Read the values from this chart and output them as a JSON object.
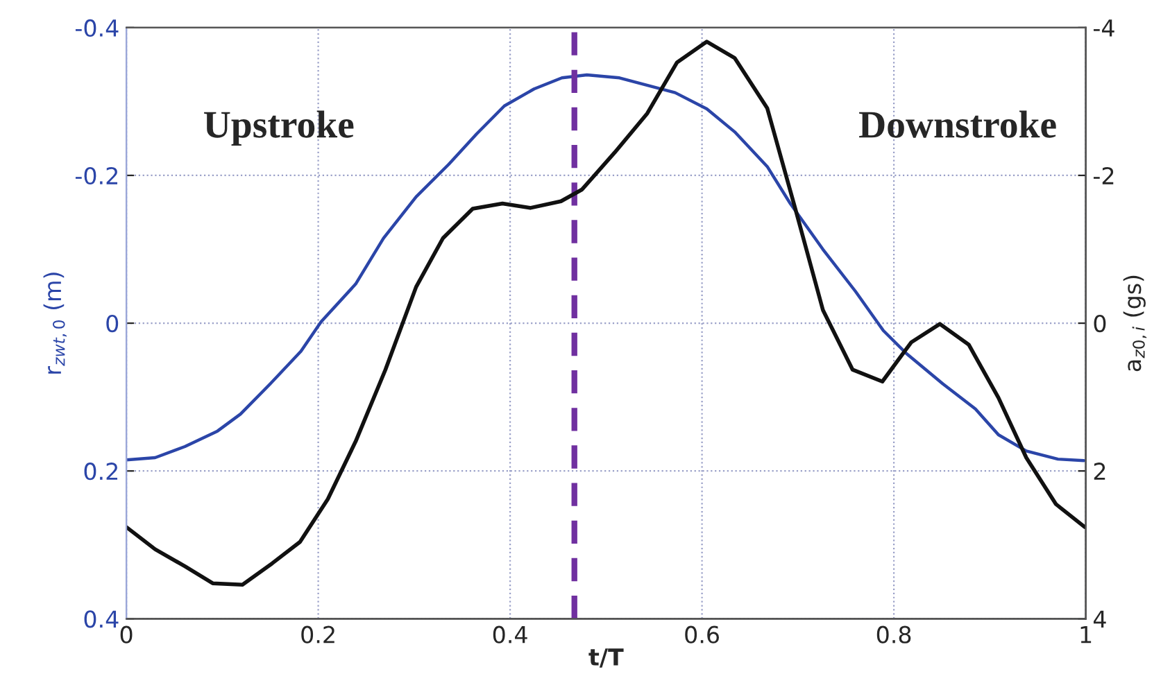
{
  "chart_data": {
    "type": "line",
    "xlabel": "t/T",
    "ylabel": "r$_{zwt,0}$ (m)",
    "y2label": "a$_{z0,i}$ (gs)",
    "xlim": [
      0,
      1
    ],
    "xticks": [
      0,
      0.2,
      0.4,
      0.6,
      0.8,
      1
    ],
    "ylim": [
      0.4,
      -0.4
    ],
    "yticks": [
      -0.4,
      -0.2,
      0,
      0.2,
      0.4
    ],
    "y2lim": [
      4,
      -4
    ],
    "y2ticks": [
      -4,
      -2,
      0,
      2,
      4
    ],
    "grid": true,
    "legend": false,
    "line_style": "solid",
    "marker": "none",
    "annotations": [
      "Upstroke",
      "Downstroke"
    ],
    "ref_lines": [
      {
        "axis": "x",
        "value": 0.467,
        "color": "#7030a0",
        "line_style": "dashed"
      }
    ],
    "series": [
      {
        "color": "#2b45a8",
        "axis": "y",
        "x": [
          0,
          0.03,
          0.061,
          0.095,
          0.119,
          0.15,
          0.182,
          0.203,
          0.239,
          0.268,
          0.302,
          0.336,
          0.365,
          0.394,
          0.425,
          0.454,
          0.48,
          0.514,
          0.572,
          0.605,
          0.634,
          0.668,
          0.692,
          0.726,
          0.76,
          0.789,
          0.813,
          0.851,
          0.885,
          0.909,
          0.938,
          0.971,
          0.998
        ],
        "values": [
          0.185,
          0.182,
          0.167,
          0.146,
          0.123,
          0.082,
          0.038,
          -0.002,
          -0.053,
          -0.115,
          -0.171,
          -0.215,
          -0.256,
          -0.294,
          -0.317,
          -0.332,
          -0.336,
          -0.332,
          -0.312,
          -0.29,
          -0.259,
          -0.212,
          -0.162,
          -0.1,
          -0.043,
          0.01,
          0.041,
          0.082,
          0.116,
          0.151,
          0.173,
          0.184,
          0.186
        ]
      },
      {
        "color": "#111111",
        "axis": "y2",
        "x": [
          0,
          0.03,
          0.061,
          0.09,
          0.121,
          0.152,
          0.181,
          0.21,
          0.239,
          0.27,
          0.302,
          0.33,
          0.361,
          0.392,
          0.421,
          0.453,
          0.475,
          0.509,
          0.543,
          0.574,
          0.605,
          0.634,
          0.668,
          0.697,
          0.726,
          0.757,
          0.788,
          0.818,
          0.848,
          0.878,
          0.909,
          0.938,
          0.969,
          0.999
        ],
        "values": [
          2.76,
          3.06,
          3.29,
          3.52,
          3.54,
          3.25,
          2.96,
          2.38,
          1.6,
          0.63,
          -0.49,
          -1.15,
          -1.55,
          -1.62,
          -1.56,
          -1.65,
          -1.81,
          -2.31,
          -2.84,
          -3.53,
          -3.81,
          -3.59,
          -2.91,
          -1.56,
          -0.18,
          0.63,
          0.79,
          0.26,
          0.01,
          0.29,
          1.01,
          1.82,
          2.45,
          2.76
        ]
      }
    ]
  }
}
